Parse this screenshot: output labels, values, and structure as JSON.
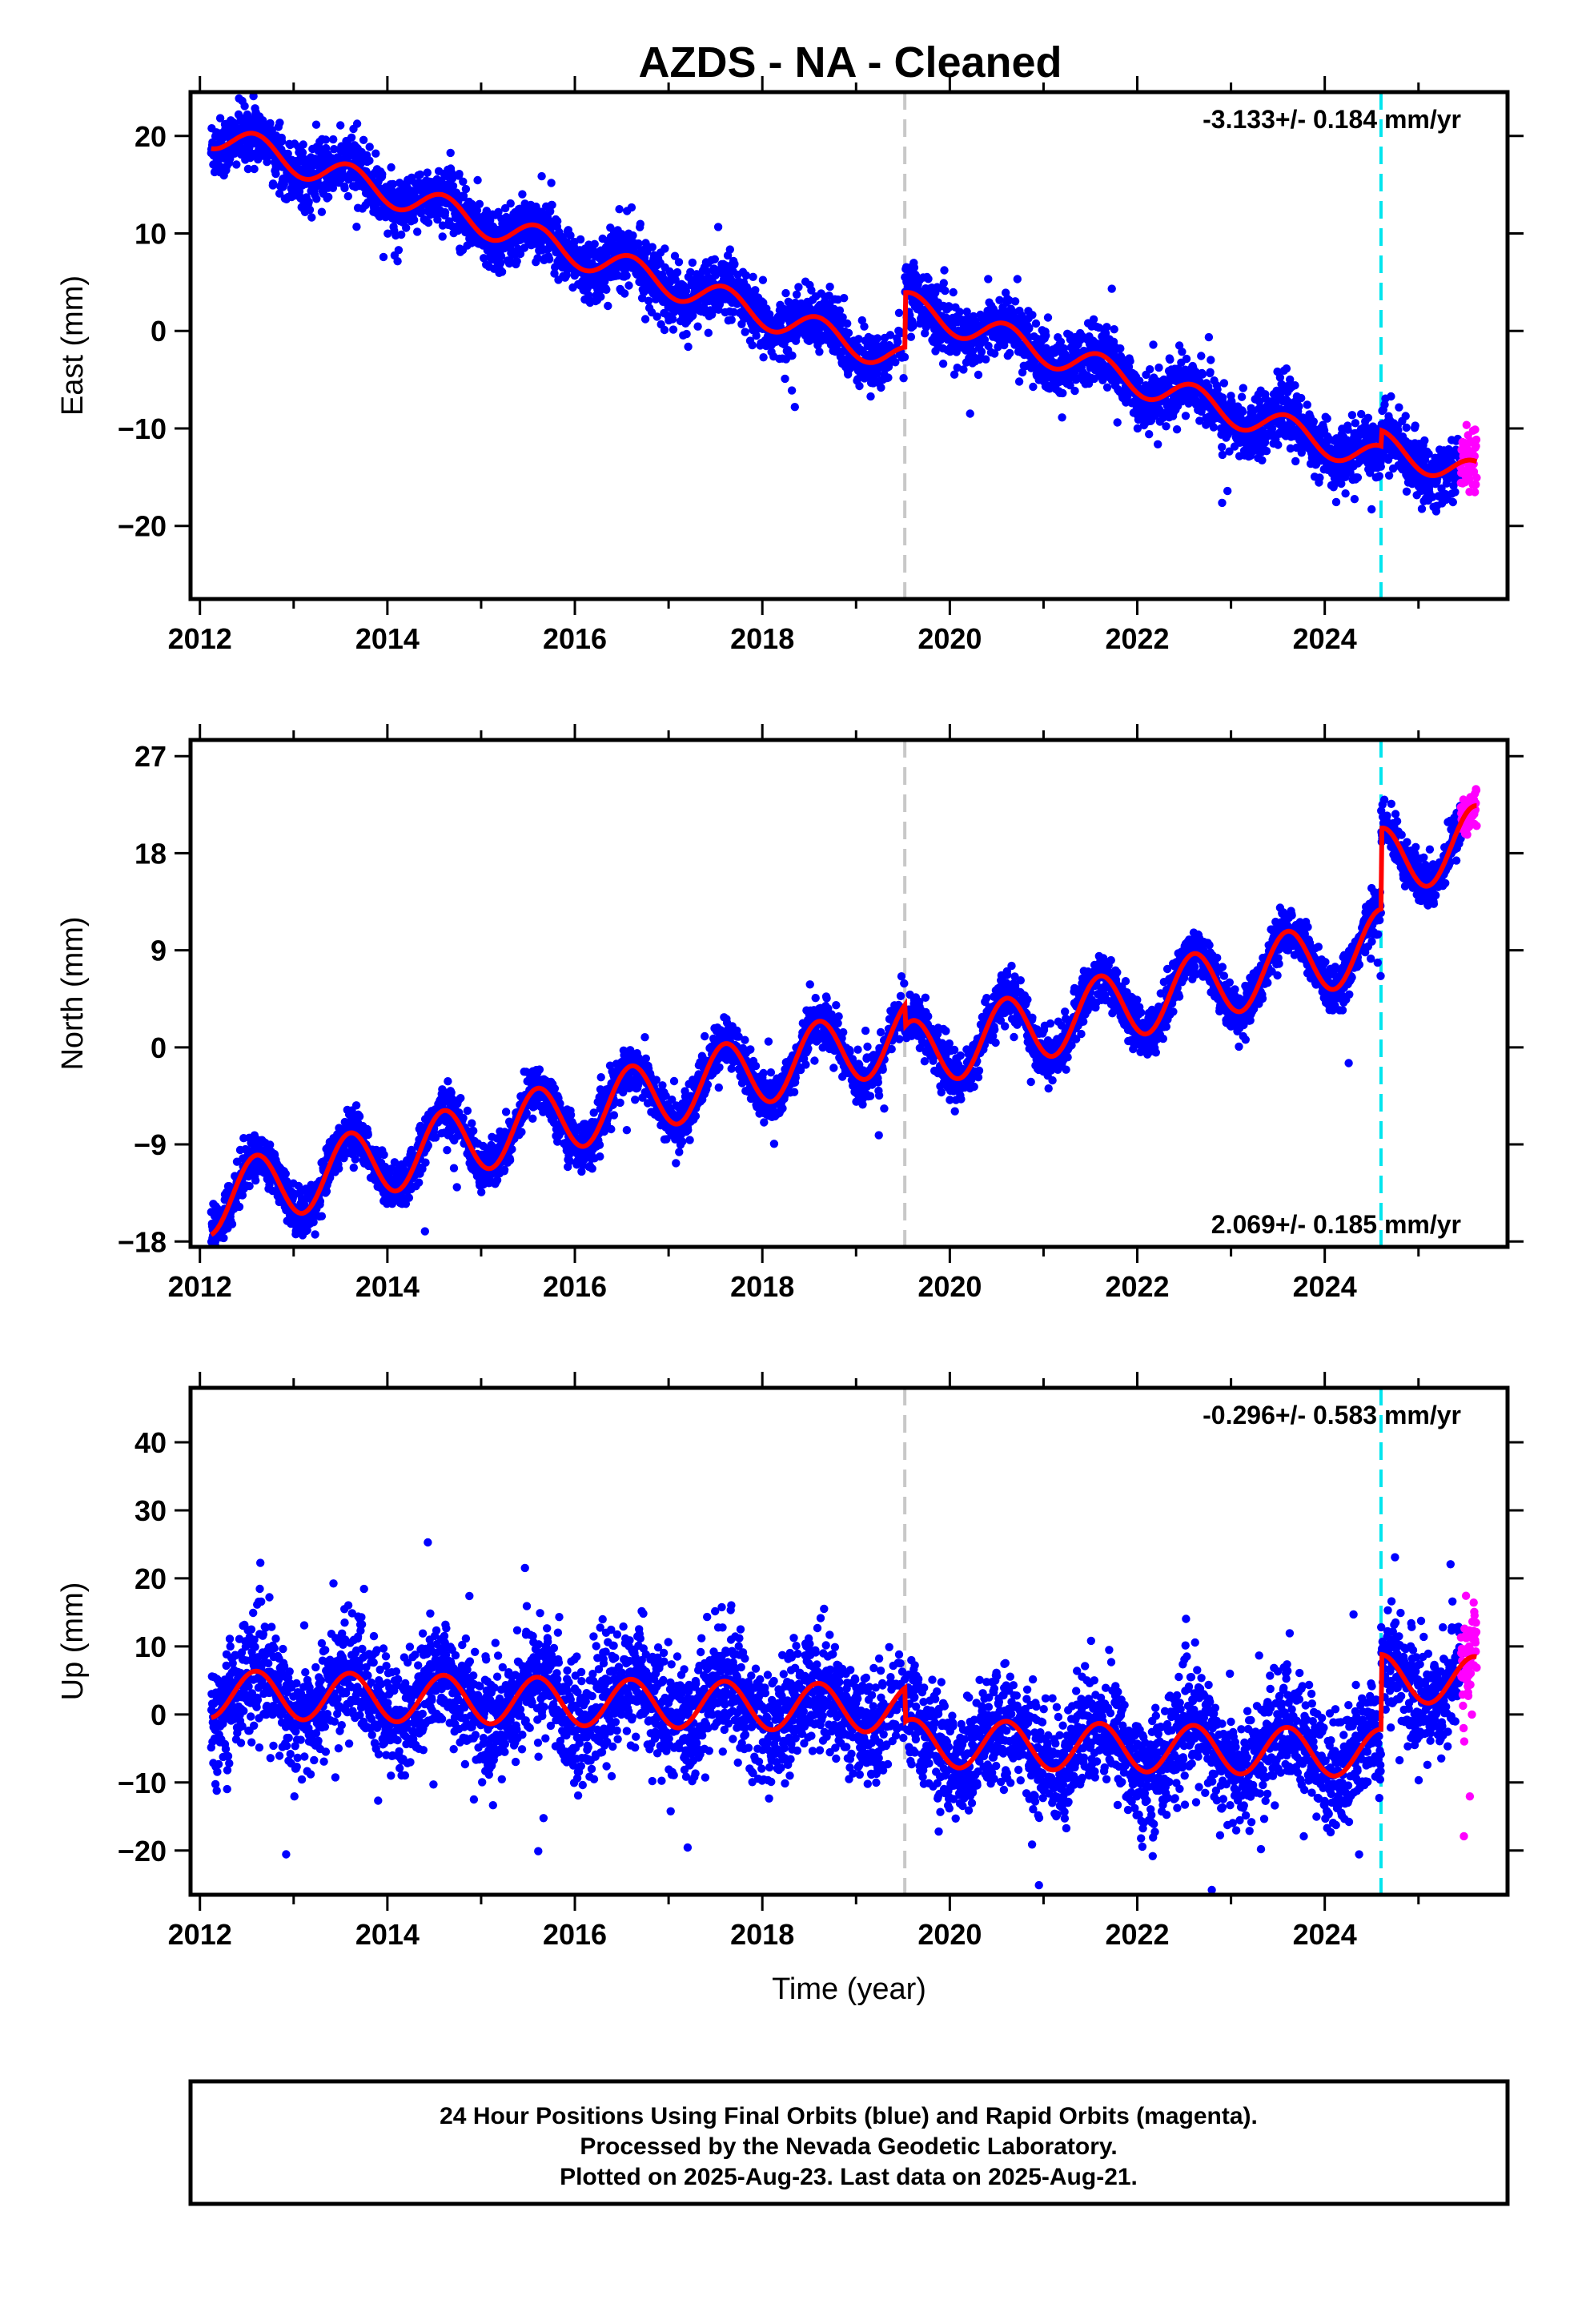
{
  "chart_data": [
    {
      "type": "scatter",
      "title": "AZDS  - NA - Cleaned",
      "ylabel": "East (mm)",
      "xlabel": "",
      "xlim": [
        2011.9,
        2025.95
      ],
      "ylim": [
        -27.5,
        24.5
      ],
      "xticks": [
        2012,
        2014,
        2016,
        2018,
        2020,
        2022,
        2024
      ],
      "yticks": [
        -20,
        -10,
        0,
        10,
        20
      ],
      "rate": "-3.133+/- 0.184 mm/yr",
      "rate_position": "top-right",
      "vlines": [
        {
          "x": 2019.52,
          "color": "#c8c8c8"
        },
        {
          "x": 2024.6,
          "color": "#00e5ee"
        }
      ],
      "trend": {
        "intercept": 20.2,
        "slope": -3.133,
        "seasonal_amp": 1.5,
        "offsets": [
          {
            "x": 2019.52,
            "dy": 5.6
          },
          {
            "x": 2024.6,
            "dy": 1.6
          }
        ]
      },
      "series": [
        {
          "name": "Final Orbits",
          "color": "#0000ff",
          "scatter": 1.5,
          "x_range": [
            2012.12,
            2025.45
          ],
          "approx_points": 4700
        },
        {
          "name": "Rapid Orbits",
          "color": "#ff00ff",
          "scatter": 1.5,
          "x_range": [
            2025.45,
            2025.62
          ],
          "approx_points": 55
        }
      ]
    },
    {
      "type": "scatter",
      "title": "",
      "ylabel": "North (mm)",
      "xlabel": "",
      "xlim": [
        2011.9,
        2025.95
      ],
      "ylim": [
        -18.5,
        28.5
      ],
      "xticks": [
        2012,
        2014,
        2016,
        2018,
        2020,
        2022,
        2024
      ],
      "yticks": [
        -18,
        -9,
        0,
        9,
        18,
        27
      ],
      "rate": "2.069+/- 0.185 mm/yr",
      "rate_position": "bottom-right",
      "vlines": [
        {
          "x": 2019.52,
          "color": "#c8c8c8"
        },
        {
          "x": 2024.6,
          "color": "#00e5ee"
        }
      ],
      "trend": {
        "intercept": -14.2,
        "slope": 2.069,
        "seasonal_amp": 3.2,
        "offsets": [
          {
            "x": 2019.52,
            "dy": -2.0
          },
          {
            "x": 2024.6,
            "dy": 7.5
          }
        ]
      },
      "series": [
        {
          "name": "Final Orbits",
          "color": "#0000ff",
          "scatter": 1.1,
          "x_range": [
            2012.12,
            2025.45
          ],
          "approx_points": 4700
        },
        {
          "name": "Rapid Orbits",
          "color": "#ff00ff",
          "scatter": 1.1,
          "x_range": [
            2025.45,
            2025.62
          ],
          "approx_points": 55
        }
      ]
    },
    {
      "type": "scatter",
      "title": "",
      "ylabel": "Up (mm)",
      "xlabel": "Time (year)",
      "xlim": [
        2011.9,
        2025.95
      ],
      "ylim": [
        -26.5,
        48
      ],
      "xticks": [
        2012,
        2014,
        2016,
        2018,
        2020,
        2022,
        2024
      ],
      "yticks": [
        -20,
        -10,
        0,
        10,
        20,
        30,
        40
      ],
      "rate": "-0.296+/- 0.583 mm/yr",
      "rate_position": "top-right",
      "vlines": [
        {
          "x": 2019.52,
          "color": "#c8c8c8"
        },
        {
          "x": 2024.6,
          "color": "#00e5ee"
        }
      ],
      "trend": {
        "intercept": 3.0,
        "slope": -0.296,
        "seasonal_amp": 3.5,
        "offsets": [
          {
            "x": 2019.52,
            "dy": -5.0
          },
          {
            "x": 2024.6,
            "dy": 11.0
          }
        ]
      },
      "series": [
        {
          "name": "Final Orbits",
          "color": "#0000ff",
          "scatter": 4.2,
          "x_range": [
            2012.12,
            2025.45
          ],
          "approx_points": 4700
        },
        {
          "name": "Rapid Orbits",
          "color": "#ff00ff",
          "scatter": 4.2,
          "x_range": [
            2025.45,
            2025.62
          ],
          "approx_points": 55
        }
      ]
    }
  ],
  "colors": {
    "final_orbits": "#0000ff",
    "rapid_orbits": "#ff00ff",
    "model": "#ff0000",
    "equipment_change": "#c8c8c8",
    "earthquake": "#00e5ee"
  },
  "footer": {
    "line1": "24 Hour Positions Using Final Orbits (blue) and Rapid Orbits (magenta).",
    "line2": "Processed by the Nevada Geodetic Laboratory.",
    "line3": "Plotted on 2025-Aug-23. Last data on 2025-Aug-21."
  }
}
